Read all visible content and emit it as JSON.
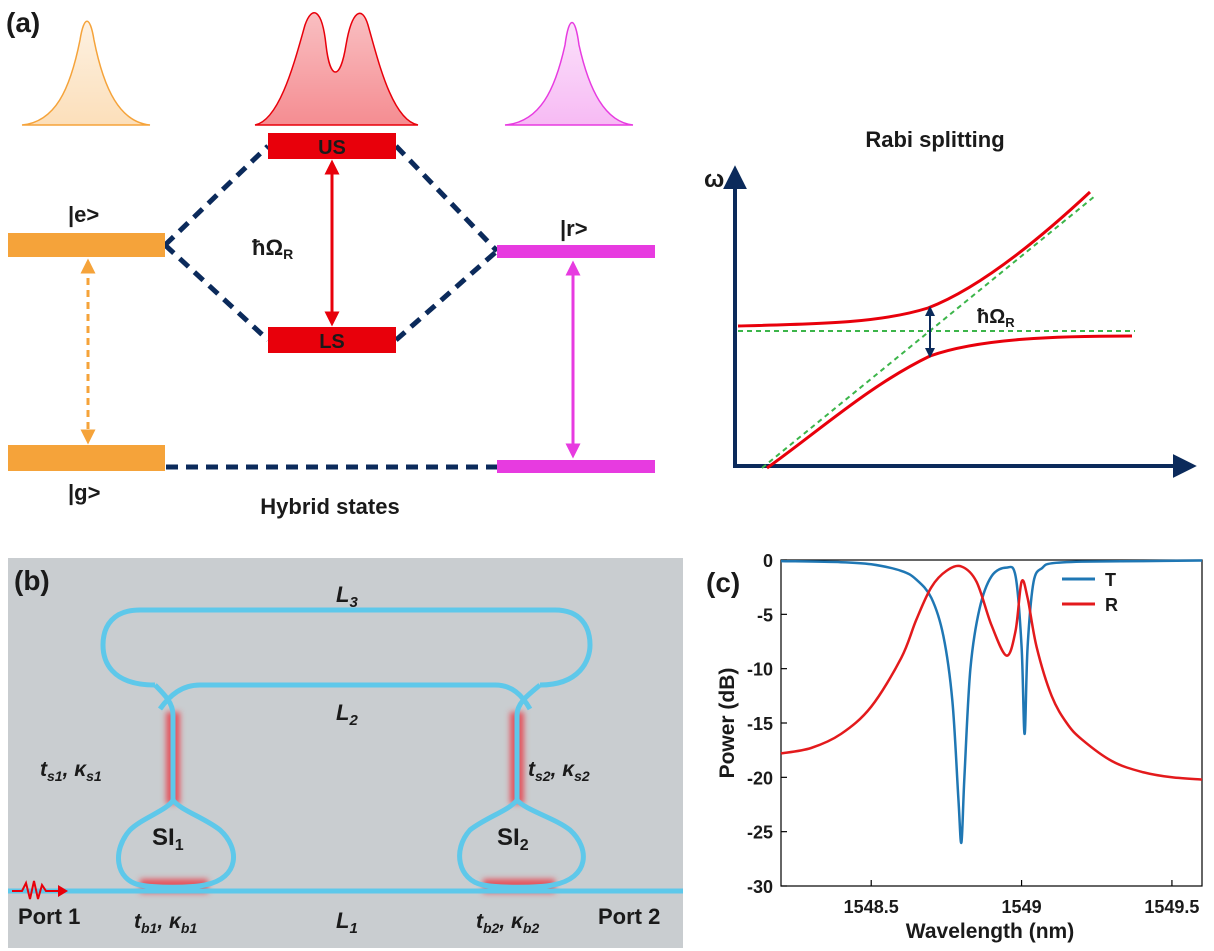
{
  "panel_a": {
    "label": "(a)",
    "level_e": "|e>",
    "level_g": "|g>",
    "level_r": "|r>",
    "upper_state": "US",
    "lower_state": "LS",
    "rabi_symbol": "ħΩ",
    "rabi_sub": "R",
    "caption": "Hybrid states",
    "colors": {
      "orange": "#f5a33a",
      "red": "#e8000b",
      "magenta": "#e73be0",
      "navy": "#0b2a5b"
    }
  },
  "rabi_plot": {
    "title": "Rabi splitting",
    "yaxis_label": "ω",
    "annotation": "ħΩ",
    "annotation_sub": "R"
  },
  "panel_b": {
    "label": "(b)",
    "L3": "L",
    "L3_sub": "3",
    "L2": "L",
    "L2_sub": "2",
    "L1": "L",
    "L1_sub": "1",
    "ts1_t": "t",
    "ts1_tsub": "s1",
    "ts1_k": "κ",
    "ts1_ksub": "s1",
    "ts2_t": "t",
    "ts2_tsub": "s2",
    "ts2_k": "κ",
    "ts2_ksub": "s2",
    "tb1_t": "t",
    "tb1_tsub": "b1",
    "tb1_k": "κ",
    "tb1_ksub": "b1",
    "tb2_t": "t",
    "tb2_tsub": "b2",
    "tb2_k": "κ",
    "tb2_ksub": "b2",
    "si1": "SI",
    "si1_sub": "1",
    "si2": "SI",
    "si2_sub": "2",
    "port1": "Port 1",
    "port2": "Port 2",
    "colors": {
      "background": "#c9cdd0",
      "waveguide": "#5ec8ea",
      "coupler": "#e8404a"
    }
  },
  "panel_c": {
    "label": "(c)",
    "chart_data": {
      "type": "line",
      "xlabel": "Wavelength (nm)",
      "ylabel": "Power (dB)",
      "xlim": [
        1548.2,
        1549.6
      ],
      "ylim": [
        -30,
        0
      ],
      "xticks": [
        1548.5,
        1549,
        1549.5
      ],
      "xtick_labels": [
        "1548.5",
        "1549",
        "1549.5"
      ],
      "yticks": [
        0,
        -5,
        -10,
        -15,
        -20,
        -25,
        -30
      ],
      "ytick_labels": [
        "0",
        "-5",
        "-10",
        "-15",
        "-20",
        "-25",
        "-30"
      ],
      "legend_position": "top-right",
      "series": [
        {
          "name": "T",
          "color": "#1f77b4",
          "x": [
            1548.2,
            1548.4,
            1548.5,
            1548.6,
            1548.65,
            1548.7,
            1548.74,
            1548.77,
            1548.79,
            1548.8,
            1548.81,
            1548.83,
            1548.86,
            1548.9,
            1548.95,
            1548.98,
            1549.0,
            1549.01,
            1549.02,
            1549.04,
            1549.07,
            1549.1,
            1549.2,
            1549.4,
            1549.6
          ],
          "y": [
            -0.1,
            -0.2,
            -0.4,
            -1.0,
            -1.8,
            -3.5,
            -7,
            -13,
            -22,
            -26,
            -20,
            -10,
            -4.5,
            -1.5,
            -0.7,
            -1.5,
            -8,
            -16,
            -8,
            -2,
            -0.7,
            -0.3,
            -0.15,
            -0.1,
            -0.05
          ]
        },
        {
          "name": "R",
          "color": "#e31a1c",
          "x": [
            1548.2,
            1548.3,
            1548.4,
            1548.5,
            1548.6,
            1548.65,
            1548.7,
            1548.75,
            1548.8,
            1548.85,
            1548.9,
            1548.95,
            1548.98,
            1549.0,
            1549.02,
            1549.05,
            1549.1,
            1549.15,
            1549.2,
            1549.3,
            1549.4,
            1549.5,
            1549.6
          ],
          "y": [
            -17.8,
            -17.3,
            -16,
            -13.5,
            -9,
            -5.5,
            -2.5,
            -1,
            -0.6,
            -2,
            -6,
            -8.8,
            -6.5,
            -2,
            -3.5,
            -8,
            -12.5,
            -15,
            -16.5,
            -18.5,
            -19.5,
            -20,
            -20.2
          ]
        }
      ]
    }
  }
}
